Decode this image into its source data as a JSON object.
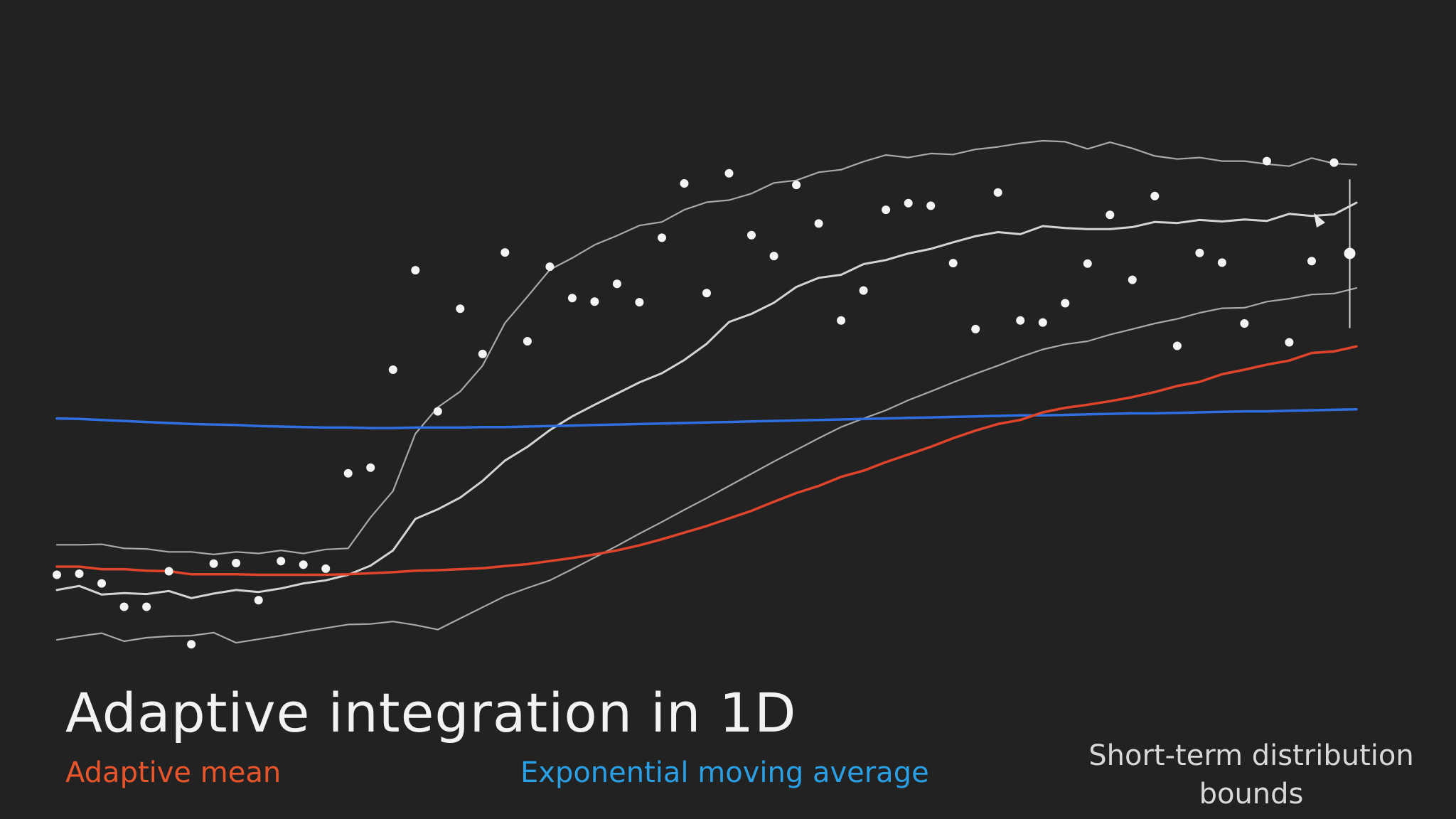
{
  "title": "Adaptive integration in 1D",
  "legend": {
    "adaptive_mean": "Adaptive mean",
    "ema": "Exponential moving average",
    "bounds": "Short-term distribution bounds"
  },
  "colors": {
    "background": "#222223",
    "adaptive_mean": "#e0442a",
    "ema": "#2f6fe0",
    "bounds": "#a9a9a9",
    "median": "#d4d4d4",
    "points": "#f4f4f4"
  },
  "chart_data": {
    "type": "line",
    "title": "Adaptive integration in 1D",
    "xlabel": "",
    "ylabel": "",
    "xlim": [
      0,
      58
    ],
    "ylim": [
      0,
      1
    ],
    "grid": false,
    "axes_visible": false,
    "samples": {
      "x": [
        0,
        1,
        2,
        3,
        4,
        5,
        6,
        7,
        8,
        9,
        10,
        11,
        12,
        13,
        14,
        15,
        16,
        17,
        18,
        19,
        20,
        21,
        22,
        23,
        24,
        25,
        26,
        27,
        28,
        29,
        30,
        31,
        32,
        33,
        34,
        35,
        36,
        37,
        38,
        39,
        40,
        41,
        42,
        43,
        44,
        45,
        46,
        47,
        48,
        49,
        50,
        51,
        52,
        53,
        54,
        55,
        56,
        57
      ],
      "y": [
        0.145,
        0.147,
        0.128,
        0.082,
        0.082,
        0.152,
        0.008,
        0.167,
        0.168,
        0.095,
        0.172,
        0.165,
        0.157,
        0.345,
        0.356,
        0.549,
        0.745,
        0.467,
        0.669,
        0.58,
        0.78,
        0.605,
        0.752,
        0.69,
        0.683,
        0.718,
        0.682,
        0.809,
        0.916,
        0.7,
        0.936,
        0.814,
        0.773,
        0.913,
        0.837,
        0.646,
        0.705,
        0.864,
        0.877,
        0.872,
        0.759,
        0.629,
        0.898,
        0.646,
        0.642,
        0.68,
        0.758,
        0.854,
        0.726,
        0.891,
        0.596,
        0.779,
        0.76,
        0.64,
        0.96,
        0.603,
        0.763,
        0.957
      ]
    },
    "current_sample": {
      "x": 57.7,
      "y": 0.778,
      "range": [
        0.631,
        0.924
      ]
    },
    "series": [
      {
        "key": "adaptive_mean",
        "values": [
          0.161,
          0.161,
          0.156,
          0.156,
          0.153,
          0.152,
          0.146,
          0.146,
          0.146,
          0.145,
          0.145,
          0.145,
          0.145,
          0.146,
          0.148,
          0.15,
          0.153,
          0.154,
          0.156,
          0.158,
          0.162,
          0.166,
          0.172,
          0.178,
          0.185,
          0.193,
          0.203,
          0.215,
          0.228,
          0.241,
          0.256,
          0.271,
          0.289,
          0.306,
          0.32,
          0.338,
          0.35,
          0.367,
          0.382,
          0.397,
          0.414,
          0.429,
          0.442,
          0.45,
          0.465,
          0.474,
          0.48,
          0.487,
          0.495,
          0.505,
          0.517,
          0.525,
          0.54,
          0.549,
          0.559,
          0.567,
          0.582,
          0.585,
          0.595
        ]
      },
      {
        "key": "ema",
        "values": [
          0.453,
          0.452,
          0.45,
          0.448,
          0.446,
          0.444,
          0.442,
          0.441,
          0.44,
          0.438,
          0.437,
          0.436,
          0.435,
          0.435,
          0.434,
          0.434,
          0.435,
          0.435,
          0.435,
          0.436,
          0.436,
          0.437,
          0.438,
          0.439,
          0.44,
          0.441,
          0.442,
          0.443,
          0.444,
          0.445,
          0.446,
          0.447,
          0.448,
          0.449,
          0.45,
          0.451,
          0.452,
          0.453,
          0.454,
          0.455,
          0.456,
          0.457,
          0.458,
          0.459,
          0.459,
          0.46,
          0.461,
          0.462,
          0.463,
          0.463,
          0.464,
          0.465,
          0.466,
          0.467,
          0.467,
          0.468,
          0.469,
          0.47,
          0.471
        ]
      },
      {
        "key": "upper_bound",
        "values": [
          0.204,
          0.204,
          0.205,
          0.197,
          0.196,
          0.19,
          0.19,
          0.185,
          0.19,
          0.187,
          0.193,
          0.187,
          0.195,
          0.197,
          0.258,
          0.31,
          0.423,
          0.475,
          0.506,
          0.557,
          0.641,
          0.693,
          0.746,
          0.769,
          0.795,
          0.813,
          0.833,
          0.84,
          0.864,
          0.879,
          0.883,
          0.896,
          0.917,
          0.922,
          0.938,
          0.943,
          0.959,
          0.972,
          0.967,
          0.975,
          0.973,
          0.983,
          0.988,
          0.995,
          1.0,
          0.998,
          0.984,
          0.997,
          0.985,
          0.97,
          0.964,
          0.967,
          0.96,
          0.96,
          0.954,
          0.95,
          0.966,
          0.955,
          0.953
        ]
      },
      {
        "key": "median",
        "values": [
          0.115,
          0.123,
          0.106,
          0.109,
          0.107,
          0.113,
          0.099,
          0.108,
          0.115,
          0.111,
          0.118,
          0.128,
          0.134,
          0.145,
          0.163,
          0.193,
          0.255,
          0.274,
          0.297,
          0.33,
          0.37,
          0.397,
          0.43,
          0.457,
          0.48,
          0.502,
          0.524,
          0.542,
          0.568,
          0.6,
          0.643,
          0.659,
          0.681,
          0.712,
          0.73,
          0.736,
          0.757,
          0.765,
          0.778,
          0.787,
          0.8,
          0.812,
          0.82,
          0.816,
          0.832,
          0.828,
          0.826,
          0.826,
          0.83,
          0.84,
          0.838,
          0.844,
          0.841,
          0.845,
          0.842,
          0.856,
          0.852,
          0.855,
          0.878
        ]
      },
      {
        "key": "lower_bound",
        "values": [
          0.017,
          0.024,
          0.03,
          0.014,
          0.021,
          0.024,
          0.025,
          0.031,
          0.011,
          0.018,
          0.025,
          0.033,
          0.04,
          0.047,
          0.048,
          0.053,
          0.046,
          0.037,
          0.059,
          0.081,
          0.103,
          0.119,
          0.134,
          0.156,
          0.179,
          0.202,
          0.226,
          0.249,
          0.273,
          0.296,
          0.32,
          0.344,
          0.368,
          0.391,
          0.414,
          0.436,
          0.453,
          0.469,
          0.489,
          0.506,
          0.524,
          0.541,
          0.557,
          0.574,
          0.589,
          0.599,
          0.605,
          0.618,
          0.629,
          0.64,
          0.649,
          0.661,
          0.67,
          0.671,
          0.683,
          0.689,
          0.697,
          0.699,
          0.71
        ]
      }
    ]
  }
}
